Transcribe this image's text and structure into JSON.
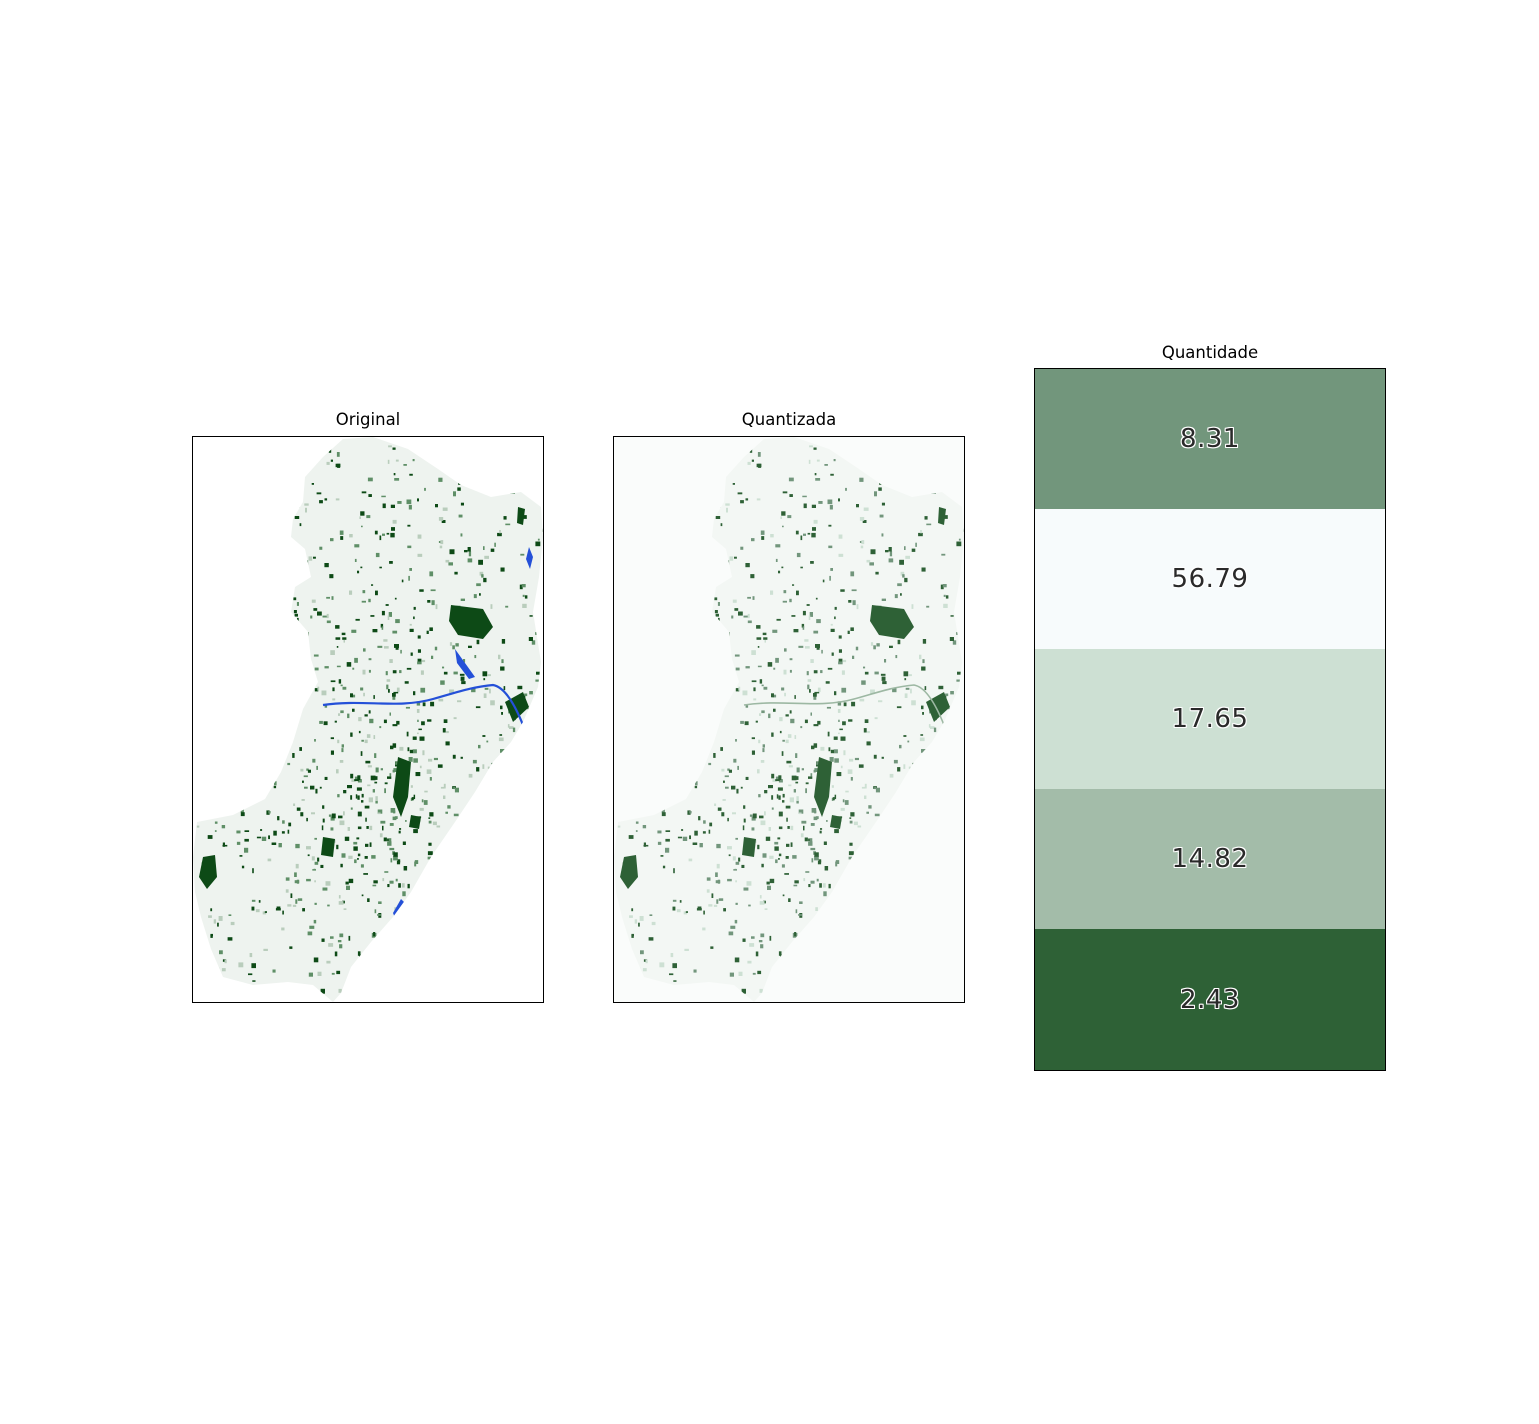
{
  "panels": {
    "original": {
      "title": "Original"
    },
    "quantized": {
      "title": "Quantizada"
    },
    "amount": {
      "title": "Quantidade"
    }
  },
  "bands": [
    {
      "label": "8.31",
      "color": "#72967c"
    },
    {
      "label": "56.79",
      "color": "#f7fbfc"
    },
    {
      "label": "17.65",
      "color": "#cde0d3"
    },
    {
      "label": "14.82",
      "color": "#a3bca9"
    },
    {
      "label": "2.43",
      "color": "#2e6136"
    }
  ],
  "colors": {
    "forest_dark": "#0d4a16",
    "forest_mid": "#5f8f67",
    "water": "#2450d8",
    "quant_dark": "#2e6136",
    "quant_bg": "#fafcfb"
  }
}
